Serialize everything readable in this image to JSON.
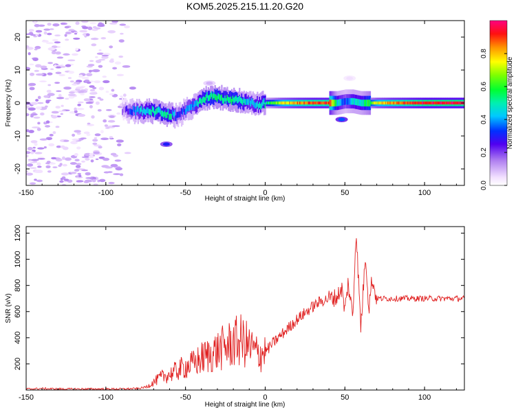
{
  "title": "KOM5.2025.215.11.20.G20",
  "chart_data": [
    {
      "type": "heatmap",
      "xlabel": "Height of straight line (km)",
      "ylabel": "Frequency (Hz)",
      "xlim": [
        -150,
        125
      ],
      "ylim": [
        -25,
        25
      ],
      "x_ticks": [
        -150,
        -100,
        -50,
        0,
        50,
        100
      ],
      "y_ticks": [
        -20,
        -10,
        0,
        10,
        20
      ],
      "colorbar": {
        "label": "Normalized spectral amplitude",
        "range": [
          0,
          1
        ],
        "ticks": [
          0.0,
          0.2,
          0.4,
          0.6,
          0.8
        ],
        "colormap": "rainbow"
      },
      "scatter_region": {
        "x": [
          -150,
          -80
        ],
        "y": [
          -25,
          25
        ],
        "amplitude": 0.03
      },
      "ridge": [
        [
          -90,
          -2,
          0.15
        ],
        [
          -85,
          -2.5,
          0.3
        ],
        [
          -80,
          -2.5,
          0.4
        ],
        [
          -75,
          -2.5,
          0.45
        ],
        [
          -70,
          -2.5,
          0.5
        ],
        [
          -65,
          -3,
          0.5
        ],
        [
          -60,
          -3.5,
          0.5
        ],
        [
          -55,
          -4,
          0.3
        ],
        [
          -50,
          -2,
          0.35
        ],
        [
          -45,
          -1,
          0.4
        ],
        [
          -40,
          1,
          0.5
        ],
        [
          -35,
          2,
          0.55
        ],
        [
          -30,
          2,
          0.55
        ],
        [
          -25,
          1,
          0.5
        ],
        [
          -20,
          1,
          0.55
        ],
        [
          -15,
          0.5,
          0.5
        ],
        [
          -10,
          0,
          0.4
        ],
        [
          -5,
          -0.5,
          0.45
        ],
        [
          0,
          0,
          0.5
        ],
        [
          10,
          0,
          0.75
        ],
        [
          20,
          0,
          0.85
        ],
        [
          30,
          0,
          0.9
        ],
        [
          40,
          0,
          0.9
        ],
        [
          45,
          0,
          0.45
        ],
        [
          50,
          0.5,
          0.35
        ],
        [
          55,
          0.5,
          0.45
        ],
        [
          60,
          0,
          0.45
        ],
        [
          65,
          0,
          0.6
        ],
        [
          70,
          0,
          0.75
        ],
        [
          80,
          0,
          0.85
        ],
        [
          90,
          0,
          0.9
        ],
        [
          100,
          0,
          0.95
        ],
        [
          110,
          0,
          0.95
        ],
        [
          125,
          0,
          0.95
        ]
      ],
      "features": [
        {
          "x": -62,
          "y": -12.5,
          "amplitude": 0.3
        },
        {
          "x": 53,
          "y": 7.5,
          "amplitude": 0.05
        },
        {
          "x": 48,
          "y": -5,
          "amplitude": 0.35
        },
        {
          "x": -35,
          "y": 6,
          "amplitude": 0.1
        }
      ]
    },
    {
      "type": "line",
      "xlabel": "Height of straight line (km)",
      "ylabel": "SNR (v/v)",
      "xlim": [
        -150,
        125
      ],
      "ylim": [
        0,
        1250
      ],
      "x_ticks": [
        -150,
        -100,
        -50,
        0,
        50,
        100
      ],
      "y_ticks": [
        200,
        400,
        600,
        800,
        1000,
        1200
      ],
      "color": "#e02020",
      "x": [
        -150,
        -140,
        -130,
        -120,
        -110,
        -100,
        -90,
        -80,
        -75,
        -70,
        -65,
        -60,
        -55,
        -50,
        -45,
        -40,
        -35,
        -30,
        -25,
        -20,
        -15,
        -10,
        -5,
        0,
        5,
        10,
        15,
        20,
        25,
        30,
        35,
        40,
        45,
        48,
        50,
        52,
        55,
        57,
        60,
        63,
        65,
        67,
        70,
        75,
        80,
        90,
        100,
        110,
        125
      ],
      "y": [
        5,
        8,
        5,
        5,
        5,
        5,
        5,
        8,
        20,
        60,
        100,
        120,
        150,
        180,
        200,
        240,
        270,
        300,
        330,
        360,
        380,
        330,
        280,
        290,
        360,
        420,
        480,
        540,
        590,
        640,
        680,
        700,
        710,
        780,
        600,
        820,
        560,
        1230,
        480,
        1050,
        620,
        850,
        700,
        700,
        700,
        700,
        700,
        700,
        700
      ]
    }
  ]
}
